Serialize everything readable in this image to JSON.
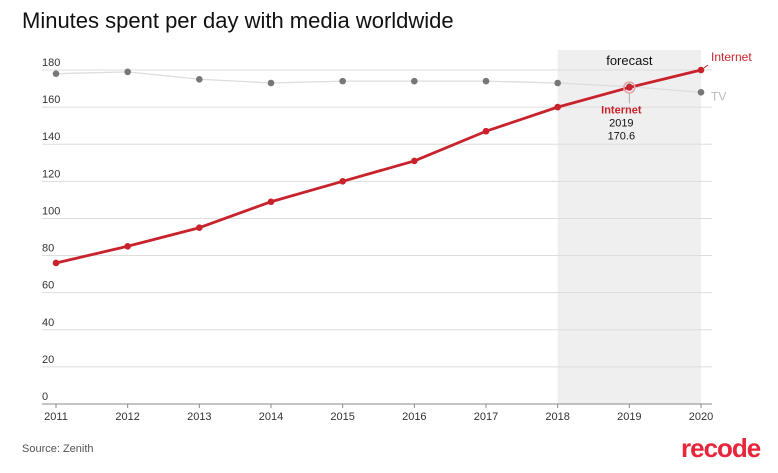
{
  "chart_data": {
    "type": "line",
    "title": "Minutes spent per day with media worldwide",
    "x": [
      "2011",
      "2012",
      "2013",
      "2014",
      "2015",
      "2016",
      "2017",
      "2018",
      "2019",
      "2020"
    ],
    "series": [
      {
        "name": "Internet",
        "color": "#c8232c",
        "values": [
          76,
          85,
          95,
          109,
          120,
          131,
          147,
          160,
          170.6,
          180
        ]
      },
      {
        "name": "TV",
        "color": "#777777",
        "values": [
          178,
          179,
          175,
          173,
          174,
          174,
          174,
          173,
          171,
          168
        ]
      }
    ],
    "ylim": [
      0,
      180
    ],
    "yticks": [
      0,
      20,
      40,
      60,
      80,
      100,
      120,
      140,
      160,
      180
    ],
    "grid": true,
    "forecast": {
      "label": "forecast",
      "from": "2018",
      "to": "2020"
    },
    "tooltip": {
      "series": "Internet",
      "x": "2019",
      "value": "170.6"
    }
  },
  "source": "Source: Zenith",
  "logo": "recode"
}
